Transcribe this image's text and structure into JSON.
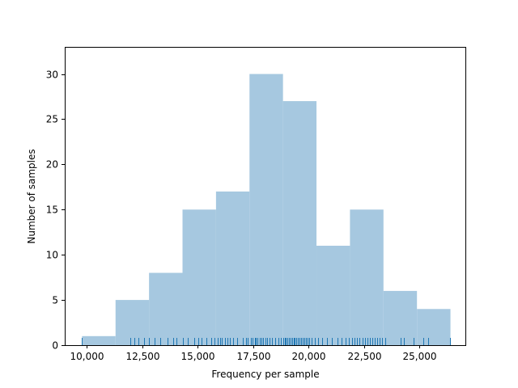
{
  "chart_data": {
    "type": "bar",
    "xlabel": "Frequency per sample",
    "ylabel": "Number of samples",
    "xlim": [
      9000,
      27100
    ],
    "ylim": [
      0,
      33
    ],
    "grid": false,
    "xticks": [
      10000,
      12500,
      15000,
      17500,
      20000,
      22500,
      25000
    ],
    "xtick_labels": [
      "10,000",
      "12,500",
      "15,000",
      "17,500",
      "20,000",
      "22,500",
      "25,000"
    ],
    "yticks": [
      0,
      5,
      10,
      15,
      20,
      25,
      30
    ],
    "ytick_labels": [
      "0",
      "5",
      "10",
      "15",
      "20",
      "25",
      "30"
    ],
    "bin_edges": [
      9780,
      11290,
      12800,
      14310,
      15820,
      17330,
      18840,
      20350,
      21860,
      23370,
      24880,
      26390
    ],
    "values": [
      1,
      5,
      8,
      15,
      17,
      30,
      27,
      11,
      15,
      6,
      4
    ],
    "bar_color": "#a6c8e0",
    "rug_color": "#1f77b4",
    "rug": [
      9780,
      11950,
      12150,
      12320,
      12580,
      12800,
      13060,
      13300,
      13650,
      13880,
      14050,
      14320,
      14560,
      14850,
      15010,
      15180,
      15370,
      15620,
      15750,
      15880,
      15990,
      16080,
      16210,
      16340,
      16460,
      16580,
      16790,
      17020,
      17180,
      17260,
      17390,
      17470,
      17560,
      17630,
      17700,
      17780,
      17860,
      17950,
      18040,
      18140,
      18250,
      18360,
      18480,
      18640,
      18760,
      18850,
      18920,
      18980,
      19050,
      19110,
      19180,
      19250,
      19310,
      19380,
      19450,
      19510,
      19580,
      19650,
      19720,
      19800,
      19880,
      19950,
      20020,
      20130,
      20260,
      20420,
      20600,
      20820,
      21060,
      21280,
      21480,
      21650,
      21800,
      21950,
      22070,
      22180,
      22300,
      22420,
      22530,
      22640,
      22760,
      22860,
      22970,
      23080,
      23190,
      23310,
      23440,
      24150,
      24280,
      24720,
      25150,
      25380,
      26380
    ]
  }
}
